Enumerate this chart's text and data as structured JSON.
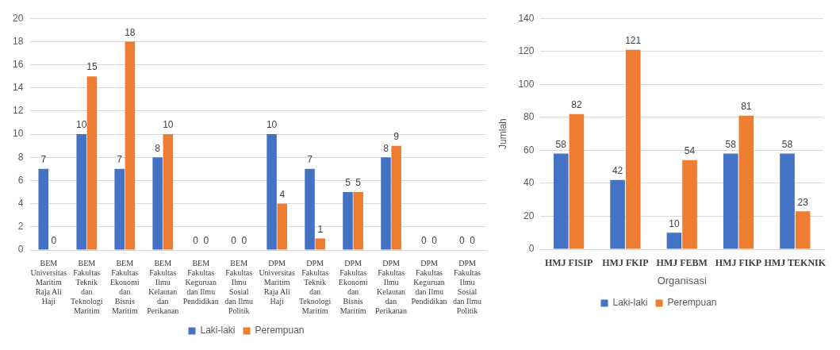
{
  "chart_data": [
    {
      "type": "bar",
      "categories": [
        "BEM Universitas Maritim Raja Ali Haji",
        "BEM Fakultas Teknik dan Teknologi Maritim",
        "BEM Fakultas Ekonomi dan Bisnis Maritim",
        "BEM Fakultas Ilmu Kelautan dan Perikanan",
        "BEM Fakultas Keguruan dan Ilmu Pendidikan",
        "BEM Fakultas Ilmu Sosial dan Ilmu Politik",
        "DPM Universitas Maritim Raja Ali Haji",
        "DPM Fakultas Teknik dan Teknologi Maritim",
        "DPM Fakultas Ekonomi dan Bisnis Maritim",
        "DPM Fakultas Ilmu Kelautan dan Perikanan",
        "DPM Fakultas Keguruan dan Ilmu Pendidikan",
        "DPM Fakultas Ilmu Sosial dan Ilmu Politik"
      ],
      "series": [
        {
          "name": "Laki-laki",
          "color": "#4472c4",
          "values": [
            7,
            10,
            7,
            8,
            0,
            0,
            10,
            7,
            5,
            8,
            0,
            0
          ]
        },
        {
          "name": "Perempuan",
          "color": "#ed7d31",
          "values": [
            0,
            15,
            18,
            10,
            0,
            0,
            4,
            1,
            5,
            9,
            0,
            0
          ]
        }
      ],
      "ylim": [
        0,
        20
      ],
      "yticks": [
        0,
        2,
        4,
        6,
        8,
        10,
        12,
        14,
        16,
        18,
        20
      ],
      "grid": "y",
      "legend": "bottom",
      "data_labels": true
    },
    {
      "type": "bar",
      "xlabel": "Organisasi",
      "ylabel": "Jumlah",
      "categories": [
        "HMJ FISIP",
        "HMJ FKIP",
        "HMJ FEBM",
        "HMJ FIKP",
        "HMJ TEKNIK"
      ],
      "series": [
        {
          "name": "Laki-laki",
          "color": "#4472c4",
          "values": [
            58,
            42,
            10,
            58,
            58
          ]
        },
        {
          "name": "Perempuan",
          "color": "#ed7d31",
          "values": [
            82,
            121,
            54,
            81,
            23
          ]
        }
      ],
      "ylim": [
        0,
        140
      ],
      "yticks": [
        0,
        20,
        40,
        60,
        80,
        100,
        120,
        140
      ],
      "grid": "y",
      "legend": "bottom",
      "data_labels": true
    }
  ]
}
